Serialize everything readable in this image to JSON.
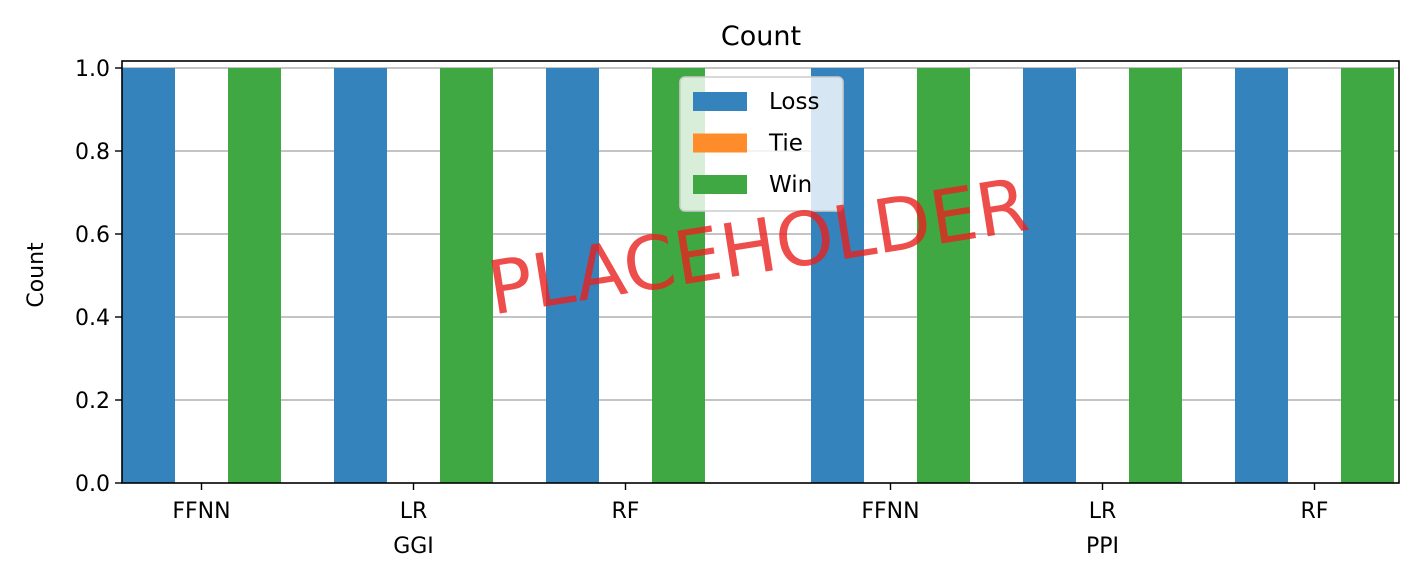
{
  "chart_data": {
    "type": "bar",
    "title": "Count",
    "xlabel": "",
    "ylabel": "Count",
    "ylim": [
      0,
      1.0
    ],
    "yticks": [
      "0.0",
      "0.2",
      "0.4",
      "0.6",
      "0.8",
      "1.0"
    ],
    "grid": "horizontal",
    "legend_position": "top-center",
    "groups": [
      {
        "name": "GGI",
        "categories": [
          "FFNN",
          "LR",
          "RF"
        ]
      },
      {
        "name": "PPI",
        "categories": [
          "FFNN",
          "LR",
          "RF"
        ]
      }
    ],
    "series": [
      {
        "name": "Loss",
        "color": "#3583bc",
        "values": [
          1,
          1,
          1,
          1,
          1,
          1
        ]
      },
      {
        "name": "Tie",
        "color": "#ff8c2a",
        "values": [
          0,
          0,
          0,
          0,
          0,
          0
        ]
      },
      {
        "name": "Win",
        "color": "#40a843",
        "values": [
          1,
          1,
          1,
          1,
          1,
          1
        ]
      }
    ],
    "watermark": "PLACEHOLDER"
  }
}
